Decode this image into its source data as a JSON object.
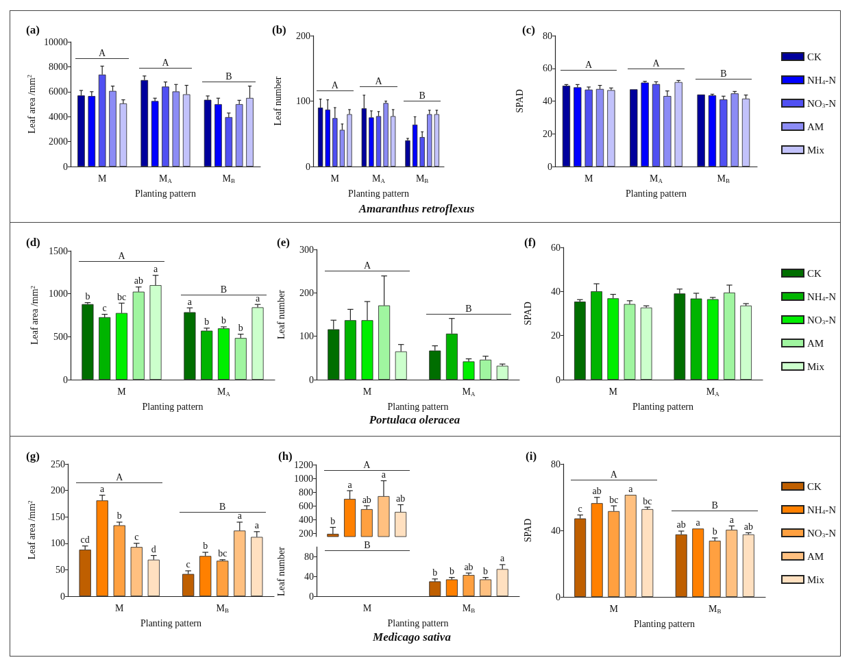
{
  "chart_data": [
    {
      "type": "bar",
      "title": "(a)",
      "categories": [
        "M",
        "M$_{A}$",
        "M$_{B}$"
      ],
      "xlabel": "Planting pattern",
      "ylabel": "Leaf area /mm$^{2}$",
      "ylim": [
        0,
        10000
      ],
      "yticks": [
        0,
        2000,
        4000,
        6000,
        8000,
        10000
      ],
      "series": [
        {
          "color": "#00009c",
          "values": [
            5700,
            6930,
            5350
          ],
          "errors": [
            [
              5700,
              6100
            ],
            [
              6930,
              7260
            ],
            [
              5350,
              5660
            ]
          ]
        },
        {
          "color": "#0000ff",
          "values": [
            5650,
            5250,
            5000
          ],
          "errors": [
            [
              5650,
              6000
            ],
            [
              5250,
              5480
            ],
            [
              5000,
              5480
            ]
          ]
        },
        {
          "color": "#5050f2",
          "values": [
            7370,
            6410,
            3960
          ],
          "errors": [
            [
              7370,
              8050
            ],
            [
              6410,
              6780
            ],
            [
              3960,
              4290
            ]
          ]
        },
        {
          "color": "#8c8cf5",
          "values": [
            6060,
            6020,
            5000
          ],
          "errors": [
            [
              6060,
              6450
            ],
            [
              6020,
              6580
            ],
            [
              5000,
              5310
            ]
          ]
        },
        {
          "color": "#c2c2fb",
          "values": [
            5060,
            5790,
            5500
          ],
          "errors": [
            [
              5060,
              5350
            ],
            [
              5790,
              6510
            ],
            [
              5500,
              6450
            ]
          ]
        }
      ],
      "annotations": [
        "A",
        "A",
        "B"
      ]
    },
    {
      "type": "bar",
      "title": "(b)",
      "categories": [
        "M",
        "M$_{A}$",
        "M$_{B}$"
      ],
      "xlabel": "Planting pattern",
      "ylabel": "Leaf number",
      "ylim": [
        0,
        200
      ],
      "yticks": [
        0,
        100,
        200
      ],
      "series": [
        {
          "color": "#00009c",
          "values": [
            90,
            89,
            40
          ],
          "errors": [
            [
              90,
              103
            ],
            [
              89,
              109
            ],
            [
              40,
              43
            ]
          ]
        },
        {
          "color": "#0000ff",
          "values": [
            87,
            75,
            64
          ],
          "errors": [
            [
              87,
              102
            ],
            [
              75,
              85
            ],
            [
              64,
              76
            ]
          ]
        },
        {
          "color": "#5050f2",
          "values": [
            74,
            77,
            45
          ],
          "errors": [
            [
              74,
              90
            ],
            [
              77,
              84
            ],
            [
              45,
              53
            ]
          ]
        },
        {
          "color": "#8c8cf5",
          "values": [
            56,
            97,
            80
          ],
          "errors": [
            [
              56,
              65
            ],
            [
              97,
              100
            ],
            [
              80,
              86
            ]
          ]
        },
        {
          "color": "#c2c2fb",
          "values": [
            80,
            77,
            80
          ],
          "errors": [
            [
              80,
              87
            ],
            [
              77,
              87
            ],
            [
              80,
              86
            ]
          ]
        }
      ],
      "annotations": [
        "A",
        "A",
        "B",
        "Amaranthus retroflexus"
      ]
    },
    {
      "type": "bar",
      "title": "(c)",
      "categories": [
        "M",
        "M$_{A}$",
        "M$_{B}$"
      ],
      "xlabel": "Planting pattern",
      "ylabel": "SPAD",
      "ylim": [
        0,
        80
      ],
      "yticks": [
        0,
        20,
        40,
        60,
        80
      ],
      "legend": "right",
      "series": [
        {
          "name": "CK",
          "color": "#00009c",
          "values": [
            49.4,
            47.2,
            44
          ],
          "errors": [
            [
              49.4,
              50.1
            ],
            null,
            null
          ]
        },
        {
          "name": "NH$_{4}$-N",
          "color": "#0000ff",
          "values": [
            48.4,
            51.3,
            43.5
          ],
          "errors": [
            [
              48.4,
              50.1
            ],
            [
              51.3,
              52.1
            ],
            [
              43.5,
              44.2
            ]
          ]
        },
        {
          "name": "NO$_{3}$-N",
          "color": "#5050f2",
          "values": [
            47,
            50.4,
            41
          ],
          "errors": [
            [
              47,
              48.6
            ],
            [
              50.4,
              51.8
            ],
            [
              41,
              43
            ]
          ]
        },
        {
          "name": "AM",
          "color": "#8c8cf5",
          "values": [
            47.4,
            43.1,
            44.7
          ],
          "errors": [
            [
              47.4,
              49.6
            ],
            [
              43.1,
              46.2
            ],
            [
              44.7,
              45.9
            ]
          ]
        },
        {
          "name": "Mix",
          "color": "#c2c2fb",
          "values": [
            46.7,
            51.6,
            41.5
          ],
          "errors": [
            [
              46.7,
              48
            ],
            [
              51.6,
              52.6
            ],
            [
              41.5,
              43.7
            ]
          ]
        }
      ],
      "annotations": [
        "A",
        "A",
        "B"
      ]
    },
    {
      "type": "bar",
      "title": "(d)",
      "categories": [
        "M",
        "M$_{A}$"
      ],
      "xlabel": "Planting pattern",
      "ylabel": "Leaf area /mm$^{2}$",
      "ylim": [
        0,
        1500
      ],
      "yticks": [
        0,
        500,
        1000,
        1500
      ],
      "series": [
        {
          "color": "#006e00",
          "values": [
            879,
            785
          ],
          "errors": [
            [
              879,
              897
            ],
            [
              785,
              836
            ]
          ],
          "value_labels": [
            "b",
            "a"
          ]
        },
        {
          "color": "#00b400",
          "values": [
            727,
            570
          ],
          "errors": [
            [
              727,
              761
            ],
            [
              570,
              600
            ]
          ],
          "value_labels": [
            "c",
            "b"
          ]
        },
        {
          "color": "#00ee00",
          "values": [
            776,
            597
          ],
          "errors": [
            [
              776,
              891
            ],
            [
              597,
              615
            ]
          ],
          "value_labels": [
            "bc",
            "b"
          ]
        },
        {
          "color": "#a0f5a0",
          "values": [
            1024,
            485
          ],
          "errors": [
            [
              1024,
              1079
            ],
            [
              485,
              530
            ]
          ],
          "value_labels": [
            "ab",
            "b"
          ]
        },
        {
          "color": "#ccffcc",
          "values": [
            1100,
            842
          ],
          "errors": [
            [
              1100,
              1215
            ],
            [
              842,
              876
            ]
          ],
          "value_labels": [
            "a",
            "a"
          ]
        }
      ],
      "annotations": [
        "A",
        "B"
      ]
    },
    {
      "type": "bar",
      "title": "(e)",
      "categories": [
        "M",
        "M$_{A}$"
      ],
      "xlabel": "Planting pattern",
      "ylabel": "Leaf number",
      "ylim": [
        0,
        300
      ],
      "yticks": [
        0,
        100,
        200,
        300
      ],
      "series": [
        {
          "color": "#006e00",
          "values": [
            116,
            67
          ],
          "errors": [
            [
              116,
              137
            ],
            [
              67,
              78
            ]
          ]
        },
        {
          "color": "#00b400",
          "values": [
            137,
            106
          ],
          "errors": [
            [
              137,
              162
            ],
            [
              106,
              141
            ]
          ]
        },
        {
          "color": "#00ee00",
          "values": [
            137,
            42
          ],
          "errors": [
            [
              137,
              180
            ],
            [
              42,
              48
            ]
          ]
        },
        {
          "color": "#a0f5a0",
          "values": [
            171,
            46
          ],
          "errors": [
            [
              171,
              239
            ],
            [
              46,
              54
            ]
          ]
        },
        {
          "color": "#ccffcc",
          "values": [
            65,
            32
          ],
          "errors": [
            [
              65,
              81
            ],
            [
              32,
              36
            ]
          ]
        }
      ],
      "annotations": [
        "A",
        "B",
        "Portulaca oleracea"
      ]
    },
    {
      "type": "bar",
      "title": "(f)",
      "categories": [
        "M",
        "M$_{A}$"
      ],
      "xlabel": "Planting pattern",
      "ylabel": "SPAD",
      "ylim": [
        0,
        60
      ],
      "yticks": [
        0,
        20,
        40,
        60
      ],
      "legend": "right",
      "series": [
        {
          "name": "CK",
          "color": "#006e00",
          "values": [
            35.4,
            39.1
          ],
          "errors": [
            [
              35.4,
              36.3
            ],
            [
              39.1,
              41.1
            ]
          ]
        },
        {
          "name": "NH$_{4}$-N",
          "color": "#00b400",
          "values": [
            40.1,
            36.8
          ],
          "errors": [
            [
              40.1,
              43.5
            ],
            [
              36.8,
              39.2
            ]
          ]
        },
        {
          "name": "NO$_{3}$-N",
          "color": "#00ee00",
          "values": [
            36.9,
            36.5
          ],
          "errors": [
            [
              36.9,
              38.7
            ],
            [
              36.5,
              37.3
            ]
          ]
        },
        {
          "name": "AM",
          "color": "#a0f5a0",
          "values": [
            34.3,
            39.5
          ],
          "errors": [
            [
              34.3,
              35.8
            ],
            [
              39.5,
              42.9
            ]
          ]
        },
        {
          "name": "Mix",
          "color": "#ccffcc",
          "values": [
            32.7,
            33.6
          ],
          "errors": [
            [
              32.7,
              33.5
            ],
            [
              33.6,
              34.5
            ]
          ]
        }
      ]
    },
    {
      "type": "bar",
      "title": "(g)",
      "categories": [
        "M",
        "M$_{B}$"
      ],
      "xlabel": "Planting pattern",
      "ylabel": "Leaf area /mm$^{2}$",
      "ylim": [
        0,
        250
      ],
      "yticks": [
        0,
        50,
        100,
        150,
        200,
        250
      ],
      "series": [
        {
          "color": "#bf5f00",
          "values": [
            88,
            42
          ],
          "errors": [
            [
              88,
              95
            ],
            [
              42,
              48
            ]
          ],
          "value_labels": [
            "cd",
            "c"
          ]
        },
        {
          "color": "#ff8000",
          "values": [
            181,
            76
          ],
          "errors": [
            [
              181,
              191
            ],
            [
              76,
              83
            ]
          ],
          "value_labels": [
            "a",
            "b"
          ]
        },
        {
          "color": "#ffa040",
          "values": [
            134,
            67
          ],
          "errors": [
            [
              134,
              140
            ],
            [
              67,
              69
            ]
          ],
          "value_labels": [
            "b",
            "bc"
          ]
        },
        {
          "color": "#ffc080",
          "values": [
            93,
            124
          ],
          "errors": [
            [
              93,
              100
            ],
            [
              124,
              140
            ]
          ],
          "value_labels": [
            "c",
            "a"
          ]
        },
        {
          "color": "#ffe0c0",
          "values": [
            69,
            112
          ],
          "errors": [
            [
              69,
              77
            ],
            [
              112,
              122
            ]
          ],
          "value_labels": [
            "d",
            "a"
          ]
        }
      ],
      "annotations": [
        "A",
        "B"
      ]
    },
    {
      "type": "bar",
      "title": "(h)",
      "categories": [
        null,
        null
      ],
      "ylim": [
        150,
        1200
      ],
      "yticks": [
        200,
        400,
        600,
        800,
        1000,
        1200
      ],
      "tick_labels": "y",
      "series": [
        {
          "color": "#bf5f00",
          "values": [
            190,
            null
          ],
          "errors": [
            [
              190,
              285
            ],
            null
          ],
          "value_labels": [
            "b",
            null
          ]
        },
        {
          "color": "#ff8000",
          "values": [
            700,
            null
          ],
          "errors": [
            [
              700,
              820
            ],
            null
          ],
          "value_labels": [
            "a",
            null
          ]
        },
        {
          "color": "#ffa040",
          "values": [
            550,
            null
          ],
          "errors": [
            [
              550,
              600
            ],
            null
          ],
          "value_labels": [
            "ab",
            null
          ]
        },
        {
          "color": "#ffc080",
          "values": [
            740,
            null
          ],
          "errors": [
            [
              740,
              965
            ],
            null
          ],
          "value_labels": [
            "a",
            null
          ]
        },
        {
          "color": "#ffe0c0",
          "values": [
            510,
            null
          ],
          "errors": [
            [
              510,
              615
            ],
            null
          ],
          "value_labels": [
            "ab",
            null
          ]
        }
      ],
      "annotations": [
        "A"
      ]
    },
    {
      "type": "bar",
      "categories": [
        "M",
        "M$_{B}$"
      ],
      "xlabel": "Planting pattern",
      "ylabel": "Leaf number",
      "ylim": [
        0,
        100
      ],
      "yticks": [
        0,
        40,
        80
      ],
      "series": [
        {
          "color": "#bf5f00",
          "values": [
            null,
            30
          ],
          "errors": [
            null,
            [
              30,
              35
            ]
          ],
          "value_labels": [
            null,
            "b"
          ]
        },
        {
          "color": "#ff8000",
          "values": [
            null,
            34
          ],
          "errors": [
            null,
            [
              34,
              38
            ]
          ],
          "value_labels": [
            null,
            "b"
          ]
        },
        {
          "color": "#ffa040",
          "values": [
            null,
            43
          ],
          "errors": [
            null,
            [
              43,
              47
            ]
          ],
          "value_labels": [
            null,
            "ab"
          ]
        },
        {
          "color": "#ffc080",
          "values": [
            null,
            34
          ],
          "errors": [
            null,
            [
              34,
              38
            ]
          ],
          "value_labels": [
            null,
            "b"
          ]
        },
        {
          "color": "#ffe0c0",
          "values": [
            null,
            55
          ],
          "errors": [
            null,
            [
              55,
              64
            ]
          ],
          "value_labels": [
            null,
            "a"
          ]
        }
      ],
      "annotations": [
        "B",
        "Medicago sativa"
      ]
    },
    {
      "type": "bar",
      "title": "(i)",
      "categories": [
        "M",
        "M$_{B}$"
      ],
      "xlabel": "Planting pattern",
      "ylabel": "SPAD",
      "ylim": [
        0,
        80
      ],
      "yticks": [
        0,
        40,
        80
      ],
      "legend": "right",
      "series": [
        {
          "name": "CK",
          "color": "#bf5f00",
          "values": [
            47.2,
            37.6
          ],
          "errors": [
            [
              47.2,
              49.3
            ],
            [
              37.6,
              39.6
            ]
          ],
          "value_labels": [
            "c",
            "ab"
          ]
        },
        {
          "name": "NH$_{4}$-N",
          "color": "#ff8000",
          "values": [
            56.4,
            41.1
          ],
          "errors": [
            [
              56.4,
              59.9
            ],
            null
          ],
          "value_labels": [
            "ab",
            "a"
          ]
        },
        {
          "name": "NO$_{3}$-N",
          "color": "#ffa040",
          "values": [
            51.6,
            33.8
          ],
          "errors": [
            [
              51.6,
              54.8
            ],
            [
              33.8,
              35.5
            ]
          ],
          "value_labels": [
            "bc",
            "b"
          ]
        },
        {
          "name": "AM",
          "color": "#ffc080",
          "values": [
            61.4,
            40.4
          ],
          "errors": [
            null,
            [
              40.4,
              42.7
            ]
          ],
          "value_labels": [
            "a",
            "a"
          ]
        },
        {
          "name": "Mix",
          "color": "#ffe0c0",
          "values": [
            52.8,
            37.6
          ],
          "errors": [
            [
              52.8,
              54
            ],
            [
              37.6,
              38.6
            ]
          ],
          "value_labels": [
            "bc",
            "ab"
          ]
        }
      ],
      "annotations": [
        "A",
        "B"
      ]
    }
  ]
}
